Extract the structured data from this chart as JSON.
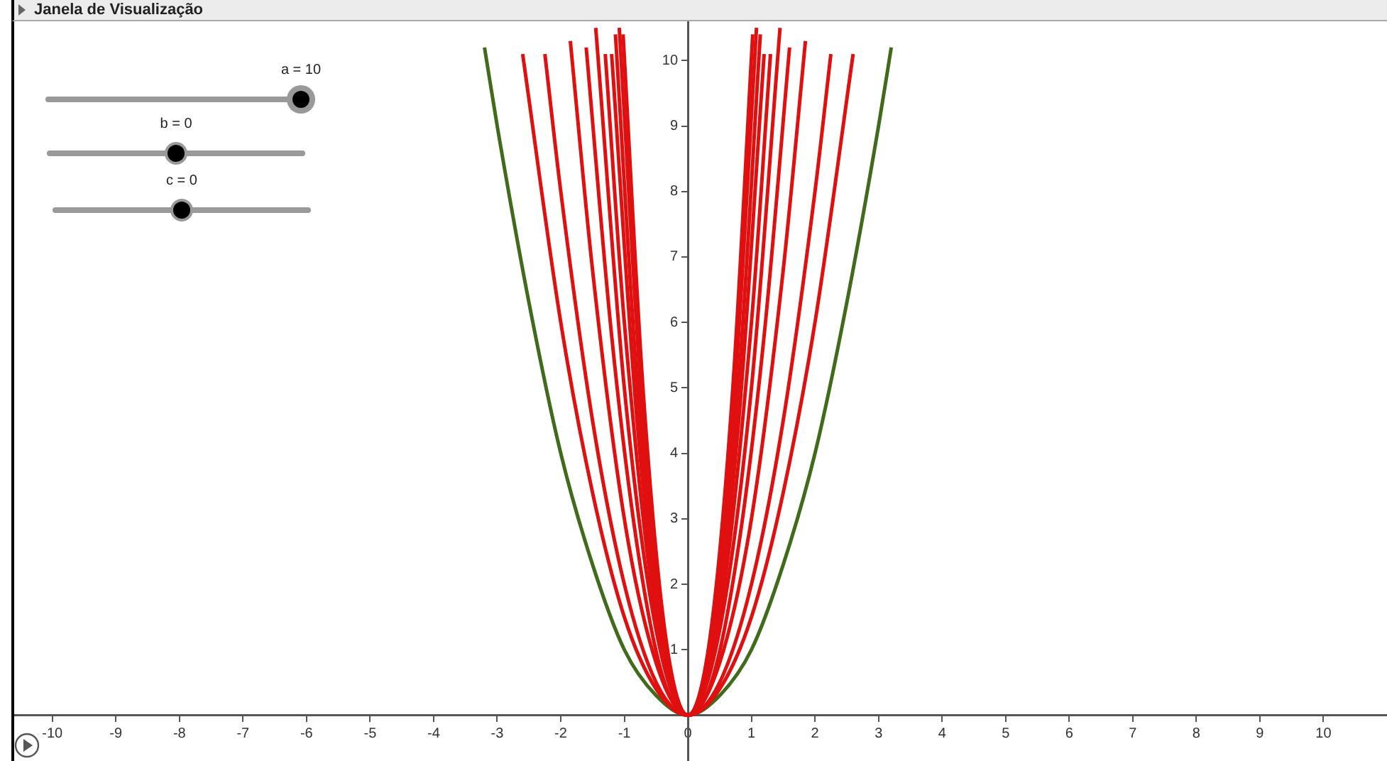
{
  "chart_data": {
    "type": "line",
    "title": "Janela de Visualização",
    "annotations": [
      "a = 10",
      "b = 0",
      "c = 0"
    ],
    "xlim": [
      -10.6,
      11
    ],
    "ylim": [
      -0.7,
      10.6
    ],
    "xticks": [
      -10,
      -9,
      -8,
      -7,
      -6,
      -5,
      -4,
      -3,
      -2,
      -1,
      0,
      1,
      2,
      3,
      4,
      5,
      6,
      7,
      8,
      9,
      10
    ],
    "yticks": [
      1,
      2,
      3,
      4,
      5,
      6,
      7,
      8,
      9,
      10
    ],
    "grid": false,
    "legend": false,
    "marker": "none",
    "line_style": "solid",
    "series": [
      {
        "color": "#e01010",
        "x": [
          -2.6,
          -2,
          -1.5,
          -1,
          -0.5,
          0,
          0.5,
          1,
          1.5,
          2,
          2.6
        ],
        "values": [
          10.1,
          6,
          3.4,
          1.5,
          0.4,
          0,
          0.4,
          1.5,
          3.4,
          6,
          10.1
        ]
      },
      {
        "color": "#e01010",
        "x": [
          -2.25,
          -2,
          -1.5,
          -1,
          -0.5,
          0,
          0.5,
          1,
          1.5,
          2,
          2.25
        ],
        "values": [
          10.1,
          8,
          4.5,
          2,
          0.5,
          0,
          0.5,
          2,
          4.5,
          8,
          10.1
        ]
      },
      {
        "color": "#e01010",
        "x": [
          -1.85,
          -1.5,
          -1,
          -0.5,
          0,
          0.5,
          1,
          1.5,
          1.85
        ],
        "values": [
          10.3,
          6.8,
          3,
          0.8,
          0,
          0.8,
          3,
          6.8,
          10.3
        ]
      },
      {
        "color": "#e01010",
        "x": [
          -1.6,
          -1.2,
          -0.8,
          -0.4,
          0,
          0.4,
          0.8,
          1.2,
          1.6
        ],
        "values": [
          10.2,
          5.8,
          2.6,
          0.6,
          0,
          0.6,
          2.6,
          5.8,
          10.2
        ]
      },
      {
        "color": "#e01010",
        "x": [
          -1.45,
          -1,
          -0.5,
          0,
          0.5,
          1,
          1.45
        ],
        "values": [
          10.5,
          5,
          1.3,
          0,
          1.3,
          5,
          10.5
        ]
      },
      {
        "color": "#e01010",
        "x": [
          -1.3,
          -1,
          -0.5,
          0,
          0.5,
          1,
          1.3
        ],
        "values": [
          10.1,
          6,
          1.5,
          0,
          1.5,
          6,
          10.1
        ]
      },
      {
        "color": "#e01010",
        "x": [
          -1.2,
          -0.8,
          -0.4,
          0,
          0.4,
          0.8,
          1.2
        ],
        "values": [
          10.1,
          4.5,
          1.1,
          0,
          1.1,
          4.5,
          10.1
        ]
      },
      {
        "color": "#e01010",
        "x": [
          -1.14,
          -0.8,
          -0.4,
          0,
          0.4,
          0.8,
          1.14
        ],
        "values": [
          10.4,
          5.1,
          1.3,
          0,
          1.3,
          5.1,
          10.4
        ]
      },
      {
        "color": "#e01010",
        "x": [
          -1.08,
          -0.7,
          -0.35,
          0,
          0.35,
          0.7,
          1.08
        ],
        "values": [
          10.5,
          4.4,
          1.1,
          0,
          1.1,
          4.4,
          10.5
        ]
      },
      {
        "color": "#e01010",
        "x": [
          -1.02,
          -0.7,
          -0.35,
          0,
          0.35,
          0.7,
          1.02
        ],
        "values": [
          10.4,
          4.9,
          1.2,
          0,
          1.2,
          4.9,
          10.4
        ]
      },
      {
        "color": "#3f6b1a",
        "x": [
          -3.2,
          -3,
          -2.5,
          -2,
          -1.5,
          -1,
          -0.5,
          0,
          0.5,
          1,
          1.5,
          2,
          2.5,
          3,
          3.2
        ],
        "values": [
          10.2,
          9,
          6.3,
          4,
          2.3,
          1,
          0.3,
          0,
          0.3,
          1,
          2.3,
          4,
          6.3,
          9,
          10.2
        ]
      }
    ]
  }
}
